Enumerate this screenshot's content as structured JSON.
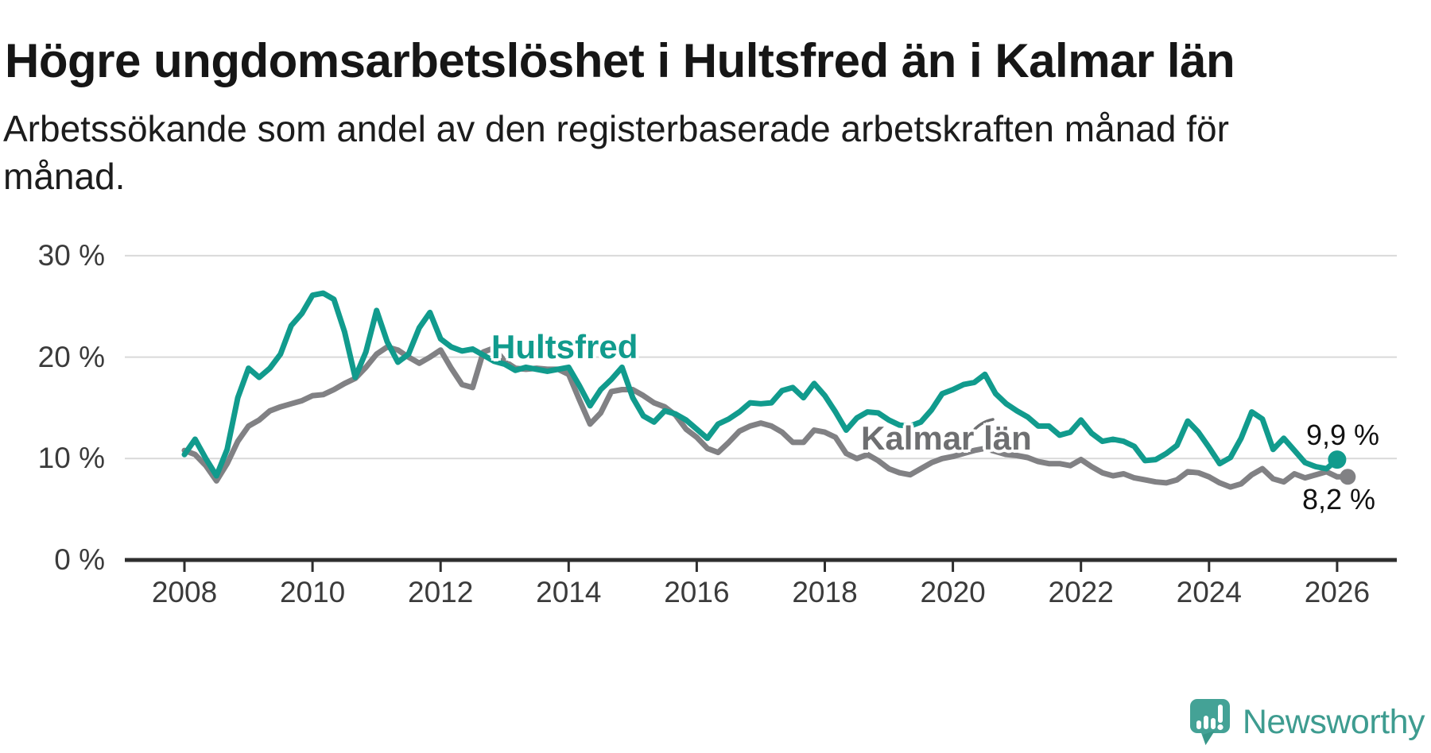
{
  "title": "Högre ungdomsarbetslöshet i Hultsfred än i Kalmar län",
  "subtitle_line1": "Arbetssökande som andel av den registerbaserade arbetskraften månad för",
  "subtitle_line2": "månad.",
  "chart_data": {
    "type": "line",
    "title": "Högre ungdomsarbetslöshet i Hultsfred än i Kalmar län",
    "subtitle": "Arbetssökande som andel av den registerbaserade arbetskraften månad för månad.",
    "grid": "horizontal",
    "legend_position": "inline-labels",
    "x_start": 2008.0,
    "x_step_years": 0.1666667,
    "xlim": [
      2007.1,
      2026.95
    ],
    "ylim": [
      0,
      30
    ],
    "x_ticks": [
      2008,
      2010,
      2012,
      2014,
      2016,
      2018,
      2020,
      2022,
      2024,
      2026
    ],
    "x_tick_labels": [
      "2008",
      "2010",
      "2012",
      "2014",
      "2016",
      "2018",
      "2020",
      "2022",
      "2024",
      "2026"
    ],
    "y_ticks": [
      30,
      20,
      10,
      0
    ],
    "y_tick_labels": [
      "30 %",
      "20 %",
      "10 %",
      "0 %"
    ],
    "colors": {
      "hultsfred_line": "#119b8d",
      "kalmar_line": "#818184",
      "kalmar_label": "#6e6f71",
      "gridline": "#d9d9d9",
      "axis": "#2e2e2e",
      "value_label": "#111111"
    },
    "series": [
      {
        "name": "Hultsfred",
        "color": "#119b8d",
        "label_color": "#119b8d",
        "end_label": "9,9 %",
        "end_value": 9.9,
        "end_dot": true,
        "dot_radius": 11.5,
        "values": [
          10.4,
          11.9,
          10.0,
          8.3,
          10.9,
          16.0,
          18.9,
          18.0,
          18.9,
          20.3,
          23.1,
          24.3,
          26.1,
          26.3,
          25.7,
          22.5,
          18.0,
          20.5,
          24.6,
          21.5,
          19.5,
          20.3,
          22.9,
          24.4,
          21.8,
          21.0,
          20.6,
          20.8,
          20.2,
          19.6,
          19.3,
          18.7,
          19.0,
          18.8,
          18.6,
          18.8,
          19.0,
          17.2,
          15.2,
          16.8,
          17.8,
          19.0,
          16.0,
          14.2,
          13.6,
          14.7,
          14.4,
          13.8,
          12.9,
          12.0,
          13.4,
          13.9,
          14.6,
          15.5,
          15.4,
          15.5,
          16.7,
          17.0,
          16.0,
          17.4,
          16.2,
          14.6,
          12.8,
          14.0,
          14.6,
          14.5,
          13.8,
          13.3,
          13.2,
          13.6,
          14.8,
          16.4,
          16.8,
          17.3,
          17.5,
          18.3,
          16.4,
          15.4,
          14.7,
          14.1,
          13.2,
          13.2,
          12.3,
          12.6,
          13.8,
          12.5,
          11.7,
          11.9,
          11.7,
          11.2,
          9.8,
          9.9,
          10.5,
          11.3,
          13.7,
          12.6,
          11.1,
          9.5,
          10.1,
          12.0,
          14.6,
          13.9,
          10.9,
          12.0,
          10.8,
          9.6,
          9.2,
          9.0,
          9.9
        ]
      },
      {
        "name": "Kalmar län",
        "color": "#818184",
        "label_color": "#6e6f71",
        "end_label": "8,2 %",
        "end_value": 8.2,
        "end_dot": true,
        "dot_radius": 10,
        "values": [
          10.8,
          10.4,
          9.3,
          7.8,
          9.5,
          11.7,
          13.2,
          13.8,
          14.7,
          15.1,
          15.4,
          15.7,
          16.2,
          16.3,
          16.8,
          17.4,
          17.9,
          19.0,
          20.3,
          21.0,
          20.7,
          20.0,
          19.4,
          20.0,
          20.7,
          18.9,
          17.3,
          17.0,
          20.5,
          20.9,
          19.6,
          18.9,
          18.8,
          18.9,
          18.8,
          18.8,
          18.3,
          15.8,
          13.4,
          14.5,
          16.6,
          16.8,
          16.8,
          16.2,
          15.5,
          15.1,
          14.3,
          12.9,
          12.1,
          11.0,
          10.6,
          11.6,
          12.7,
          13.2,
          13.5,
          13.2,
          12.6,
          11.6,
          11.6,
          12.8,
          12.6,
          12.1,
          10.5,
          10.0,
          10.4,
          9.8,
          9.0,
          8.6,
          8.4,
          9.0,
          9.6,
          10.0,
          10.2,
          10.5,
          10.8,
          11.0,
          10.7,
          10.4,
          10.3,
          10.1,
          9.7,
          9.5,
          9.5,
          9.3,
          9.9,
          9.2,
          8.6,
          8.3,
          8.5,
          8.1,
          7.9,
          7.7,
          7.6,
          7.9,
          8.7,
          8.6,
          8.2,
          7.6,
          7.2,
          7.5,
          8.4,
          9.0,
          8.0,
          7.7,
          8.5,
          8.1,
          8.4,
          8.7,
          8.2,
          8.2
        ]
      }
    ]
  },
  "logo": {
    "text": "Newsworthy",
    "color": "#3e9c90",
    "icon": "newsworthy-speech-bubble-bar-chart-icon",
    "icon_color": "#44a296"
  }
}
